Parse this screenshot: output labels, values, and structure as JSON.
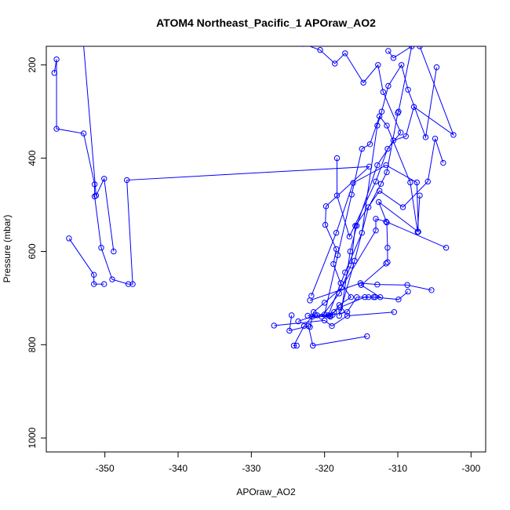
{
  "chart_data": {
    "type": "line",
    "title": "ATOM4 Northeast_Pacific_1 APOraw_AO2",
    "xlabel": "APOraw_AO2",
    "ylabel": "Pressure (mbar)",
    "xlim": [
      -358,
      -298
    ],
    "ylim": [
      1030,
      160
    ],
    "y_reversed": true,
    "grid": false,
    "x_ticks": [
      -350,
      -340,
      -330,
      -320,
      -310,
      -300
    ],
    "y_ticks": [
      200,
      400,
      600,
      800,
      1000
    ],
    "marker": "open-circle",
    "line_color": "#0000ff",
    "series": [
      {
        "points": [
          [
            -356.9,
            217
          ],
          [
            -356.6,
            188
          ],
          [
            -356.6,
            337
          ],
          [
            -352.9,
            347
          ],
          [
            -351.4,
            456
          ],
          [
            -351.4,
            482
          ],
          [
            -350.5,
            592
          ],
          [
            -349.0,
            660
          ],
          [
            -346.8,
            670
          ],
          [
            -346.2,
            670
          ],
          [
            -347.0,
            447
          ],
          [
            -313.9,
            418
          ],
          [
            -319.8,
            503
          ],
          [
            -319.9,
            543
          ],
          [
            -318.4,
            595
          ],
          [
            -318.8,
            627
          ],
          [
            -317.8,
            668
          ],
          [
            -316.4,
            698
          ],
          [
            -318.0,
            715
          ],
          [
            -319.2,
            740
          ],
          [
            -321.7,
            740
          ],
          [
            -322.8,
            760
          ],
          [
            -324.2,
            802
          ],
          [
            -323.8,
            802
          ]
        ]
      },
      {
        "points": [
          [
            -354.9,
            572
          ],
          [
            -351.5,
            650
          ],
          [
            -351.5,
            670
          ],
          [
            -350.1,
            670
          ]
        ]
      },
      {
        "points": [
          [
            -353.0,
            140
          ],
          [
            -351.2,
            480
          ],
          [
            -350.1,
            444
          ],
          [
            -348.8,
            600
          ]
        ]
      },
      {
        "points": [
          [
            -324.5,
            737
          ],
          [
            -324.8,
            770
          ],
          [
            -322.2,
            760
          ],
          [
            -321.6,
            802
          ],
          [
            -314.2,
            782
          ]
        ]
      },
      {
        "points": [
          [
            -326.9,
            759
          ],
          [
            -320.0,
            748
          ],
          [
            -319.0,
            760
          ],
          [
            -316.9,
            738
          ],
          [
            -310.5,
            730
          ]
        ]
      },
      {
        "points": [
          [
            -322.3,
            738
          ],
          [
            -321.0,
            737
          ],
          [
            -318.9,
            736
          ],
          [
            -316.9,
            730
          ],
          [
            -315.6,
            698
          ],
          [
            -314.0,
            698
          ],
          [
            -313.1,
            698
          ],
          [
            -312.4,
            698
          ],
          [
            -315.0,
            672
          ],
          [
            -311.6,
            626
          ]
        ]
      },
      {
        "points": [
          [
            -322.0,
            705
          ],
          [
            -315.1,
            668
          ],
          [
            -312.8,
            671
          ],
          [
            -308.7,
            672
          ],
          [
            -305.4,
            683
          ]
        ]
      },
      {
        "points": [
          [
            -322.0,
            762
          ],
          [
            -321.5,
            730
          ],
          [
            -320.0,
            710
          ],
          [
            -317.7,
            678
          ],
          [
            -313.0,
            555
          ],
          [
            -313.0,
            530
          ],
          [
            -311.6,
            536
          ],
          [
            -303.4,
            592
          ]
        ]
      },
      {
        "points": [
          [
            -321.8,
            695
          ],
          [
            -318.4,
            560
          ],
          [
            -316.1,
            453
          ],
          [
            -311.6,
            415
          ],
          [
            -307.4,
            452
          ],
          [
            -307.2,
            558
          ],
          [
            -312.6,
            494
          ],
          [
            -311.5,
            538
          ],
          [
            -311.4,
            592
          ],
          [
            -311.4,
            623
          ]
        ]
      },
      {
        "points": [
          [
            -320.4,
            740
          ],
          [
            -318.0,
            690
          ],
          [
            -316.4,
            630
          ],
          [
            -315.8,
            545
          ],
          [
            -312.5,
            470
          ],
          [
            -309.3,
            505
          ],
          [
            -305.9,
            450
          ],
          [
            -304.9,
            358
          ],
          [
            -303.8,
            410
          ]
        ]
      },
      {
        "points": [
          [
            -320.0,
            735
          ],
          [
            -318.2,
            608
          ],
          [
            -316.3,
            478
          ],
          [
            -314.9,
            380
          ],
          [
            -313.8,
            370
          ],
          [
            -312.5,
            310
          ],
          [
            -311.5,
            330
          ],
          [
            -308.3,
            452
          ],
          [
            -307.3,
            558
          ],
          [
            -307.0,
            480
          ]
        ]
      },
      {
        "points": [
          [
            -319.5,
            737
          ],
          [
            -317.2,
            645
          ],
          [
            -314.9,
            560
          ],
          [
            -312.8,
            330
          ],
          [
            -312.2,
            300
          ],
          [
            -311.3,
            245
          ],
          [
            -309.5,
            200
          ],
          [
            -308.6,
            253
          ],
          [
            -306.2,
            355
          ],
          [
            -304.7,
            205
          ]
        ]
      },
      {
        "points": [
          [
            -318.0,
            738
          ],
          [
            -315.9,
            620
          ],
          [
            -314.0,
            505
          ],
          [
            -312.3,
            455
          ],
          [
            -311.5,
            430
          ],
          [
            -310.0,
            303
          ],
          [
            -309.9,
            300
          ],
          [
            -308.1,
            160
          ],
          [
            -310.6,
            185
          ],
          [
            -311.3,
            170
          ]
        ]
      },
      {
        "points": [
          [
            -317.7,
            728
          ],
          [
            -316.5,
            600
          ],
          [
            -315.6,
            545
          ],
          [
            -312.8,
            415
          ],
          [
            -310.6,
            362
          ],
          [
            -308.9,
            353
          ],
          [
            -307.8,
            290
          ],
          [
            -302.4,
            350
          ],
          [
            -307.0,
            160
          ]
        ]
      },
      {
        "points": [
          [
            -318.3,
            400
          ],
          [
            -318.3,
            480
          ],
          [
            -316.6,
            568
          ],
          [
            -313.0,
            450
          ],
          [
            -311.4,
            380
          ],
          [
            -309.6,
            345
          ],
          [
            -312.0,
            258
          ],
          [
            -312.7,
            200
          ],
          [
            -314.7,
            238
          ],
          [
            -317.2,
            175
          ],
          [
            -318.6,
            197
          ],
          [
            -320.6,
            168
          ],
          [
            -322.9,
            155
          ]
        ]
      },
      {
        "points": [
          [
            -323.6,
            750
          ],
          [
            -321.3,
            737
          ],
          [
            -319.3,
            738
          ],
          [
            -318.7,
            730
          ],
          [
            -317.9,
            720
          ],
          [
            -314.5,
            698
          ],
          [
            -313.3,
            698
          ],
          [
            -309.9,
            703
          ],
          [
            -308.6,
            686
          ]
        ]
      }
    ]
  }
}
